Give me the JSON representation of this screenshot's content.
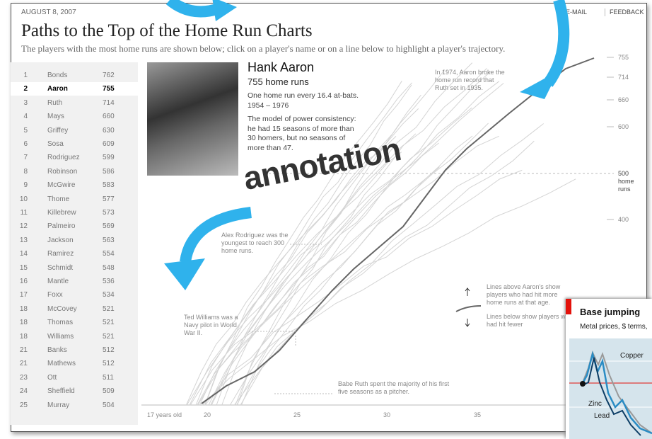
{
  "header": {
    "date": "AUGUST 8, 2007",
    "links": [
      "E-MAIL",
      "FEEDBACK"
    ],
    "title": "Paths to the Top of the Home Run Charts",
    "subtitle": "The players with the most home runs are shown below; click on a player's name or on a line below to highlight a player's trajectory."
  },
  "players": [
    {
      "rank": 1,
      "name": "Bonds",
      "hr": 762
    },
    {
      "rank": 2,
      "name": "Aaron",
      "hr": 755
    },
    {
      "rank": 3,
      "name": "Ruth",
      "hr": 714
    },
    {
      "rank": 4,
      "name": "Mays",
      "hr": 660
    },
    {
      "rank": 5,
      "name": "Griffey",
      "hr": 630
    },
    {
      "rank": 6,
      "name": "Sosa",
      "hr": 609
    },
    {
      "rank": 7,
      "name": "Rodriguez",
      "hr": 599
    },
    {
      "rank": 8,
      "name": "Robinson",
      "hr": 586
    },
    {
      "rank": 9,
      "name": "McGwire",
      "hr": 583
    },
    {
      "rank": 10,
      "name": "Thome",
      "hr": 577
    },
    {
      "rank": 11,
      "name": "Killebrew",
      "hr": 573
    },
    {
      "rank": 12,
      "name": "Palmeiro",
      "hr": 569
    },
    {
      "rank": 13,
      "name": "Jackson",
      "hr": 563
    },
    {
      "rank": 14,
      "name": "Ramirez",
      "hr": 554
    },
    {
      "rank": 15,
      "name": "Schmidt",
      "hr": 548
    },
    {
      "rank": 16,
      "name": "Mantle",
      "hr": 536
    },
    {
      "rank": 17,
      "name": "Foxx",
      "hr": 534
    },
    {
      "rank": 18,
      "name": "McCovey",
      "hr": 521
    },
    {
      "rank": 18,
      "name": "Thomas",
      "hr": 521
    },
    {
      "rank": 18,
      "name": "Williams",
      "hr": 521
    },
    {
      "rank": 21,
      "name": "Banks",
      "hr": 512
    },
    {
      "rank": 21,
      "name": "Mathews",
      "hr": 512
    },
    {
      "rank": 23,
      "name": "Ott",
      "hr": 511
    },
    {
      "rank": 24,
      "name": "Sheffield",
      "hr": 509
    },
    {
      "rank": 25,
      "name": "Murray",
      "hr": 504
    }
  ],
  "profile": {
    "name": "Hank Aaron",
    "hr": "755 home runs",
    "rate": "One home run every 16.4 at-bats.",
    "years": "1954 – 1976",
    "text": "The model of power consistency: he had 15 seasons of more than 30 homers, but no seasons of more than 47."
  },
  "chart": {
    "x_labels": [
      "17 years old",
      "20",
      "25",
      "30",
      "35"
    ],
    "y_labels": [
      "755",
      "714",
      "660",
      "600",
      "500 home runs",
      "400"
    ],
    "notes": [
      "In 1974, Aaron broke the home run record that Ruth set in 1935.",
      "Alex Rodriguez was the youngest to reach 300 home runs.",
      "Ted Williams was a Navy pilot in World War II.",
      "Babe Ruth spent the majority of his first five seasons as a pitcher.",
      "Lines above Aaron's show players who had hit more home runs at that age.",
      "Lines below show players who had hit fewer"
    ]
  },
  "overlay": "annotation",
  "inset": {
    "title": "Base jumping",
    "subtitle": "Metal prices, $ terms,",
    "labels": [
      "Copper",
      "Zinc",
      "Lead"
    ]
  }
}
